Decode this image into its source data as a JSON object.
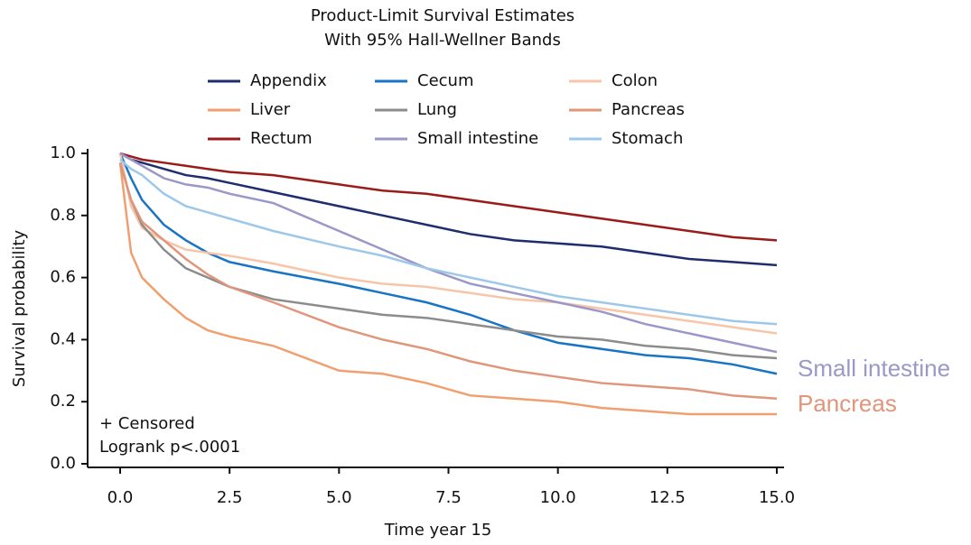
{
  "chart_data": {
    "type": "line",
    "title": "Product-Limit Survival Estimates",
    "subtitle": "With 95% Hall-Wellner Bands",
    "x_label": "Time year 15",
    "y_label": "Survival probability",
    "notes": [
      "+ Censored",
      "Logrank p<.0001"
    ],
    "annotations": [
      {
        "text": "Small intestine",
        "color": "#9b97c8"
      },
      {
        "text": "Pancreas",
        "color": "#e0967a"
      }
    ],
    "x": [
      0,
      0.25,
      0.5,
      1,
      1.5,
      2,
      2.5,
      3.5,
      5,
      6,
      7,
      8,
      9,
      10,
      11,
      12,
      13,
      14,
      15
    ],
    "xlim": [
      0,
      15
    ],
    "xticks": [
      {
        "value": 0,
        "label": "0.0"
      },
      {
        "value": 2.5,
        "label": "2.5"
      },
      {
        "value": 5,
        "label": "5.0"
      },
      {
        "value": 7.5,
        "label": "7.5"
      },
      {
        "value": 10,
        "label": "10.0"
      },
      {
        "value": 12.5,
        "label": "12.5"
      },
      {
        "value": 15,
        "label": "15.0"
      }
    ],
    "ylim": [
      0,
      1
    ],
    "yticks": [
      {
        "value": 0,
        "label": "0.0"
      },
      {
        "value": 0.2,
        "label": "0.2"
      },
      {
        "value": 0.4,
        "label": "0.4"
      },
      {
        "value": 0.6,
        "label": "0.6"
      },
      {
        "value": 0.8,
        "label": "0.8"
      },
      {
        "value": 1,
        "label": "1.0"
      }
    ],
    "series": [
      {
        "name": "Appendix",
        "color": "#1f2d6e",
        "values": [
          1.0,
          0.98,
          0.97,
          0.95,
          0.93,
          0.92,
          0.905,
          0.875,
          0.83,
          0.8,
          0.77,
          0.74,
          0.72,
          0.71,
          0.7,
          0.68,
          0.66,
          0.65,
          0.64
        ]
      },
      {
        "name": "Cecum",
        "color": "#1874c4",
        "values": [
          1.0,
          0.92,
          0.85,
          0.77,
          0.72,
          0.68,
          0.65,
          0.62,
          0.58,
          0.55,
          0.52,
          0.48,
          0.43,
          0.39,
          0.37,
          0.35,
          0.34,
          0.32,
          0.29
        ]
      },
      {
        "name": "Colon",
        "color": "#f7c6a8",
        "values": [
          1.0,
          0.83,
          0.76,
          0.72,
          0.69,
          0.68,
          0.67,
          0.645,
          0.6,
          0.58,
          0.57,
          0.55,
          0.53,
          0.52,
          0.5,
          0.48,
          0.46,
          0.44,
          0.42
        ]
      },
      {
        "name": "Liver",
        "color": "#f0a070",
        "values": [
          0.97,
          0.68,
          0.6,
          0.53,
          0.47,
          0.43,
          0.41,
          0.38,
          0.3,
          0.29,
          0.26,
          0.22,
          0.21,
          0.2,
          0.18,
          0.17,
          0.16,
          0.16,
          0.16
        ]
      },
      {
        "name": "Lung",
        "color": "#8c8c8c",
        "values": [
          0.97,
          0.85,
          0.77,
          0.69,
          0.63,
          0.6,
          0.57,
          0.53,
          0.5,
          0.48,
          0.47,
          0.45,
          0.43,
          0.41,
          0.4,
          0.38,
          0.37,
          0.35,
          0.34
        ]
      },
      {
        "name": "Pancreas",
        "color": "#e0967a",
        "values": [
          0.97,
          0.85,
          0.78,
          0.72,
          0.66,
          0.61,
          0.57,
          0.52,
          0.44,
          0.4,
          0.37,
          0.33,
          0.3,
          0.28,
          0.26,
          0.25,
          0.24,
          0.22,
          0.21
        ]
      },
      {
        "name": "Rectum",
        "color": "#9b1b1b",
        "values": [
          1.0,
          0.99,
          0.98,
          0.97,
          0.96,
          0.95,
          0.94,
          0.93,
          0.9,
          0.88,
          0.87,
          0.85,
          0.83,
          0.81,
          0.79,
          0.77,
          0.75,
          0.73,
          0.72
        ]
      },
      {
        "name": "Small intestine",
        "color": "#9b97c8",
        "values": [
          1.0,
          0.98,
          0.96,
          0.92,
          0.9,
          0.89,
          0.87,
          0.84,
          0.75,
          0.69,
          0.63,
          0.58,
          0.55,
          0.52,
          0.49,
          0.45,
          0.42,
          0.39,
          0.36
        ]
      },
      {
        "name": "Stomach",
        "color": "#9dc8ea",
        "values": [
          0.98,
          0.95,
          0.93,
          0.87,
          0.83,
          0.81,
          0.79,
          0.75,
          0.7,
          0.67,
          0.63,
          0.6,
          0.57,
          0.54,
          0.52,
          0.5,
          0.48,
          0.46,
          0.45
        ]
      }
    ]
  }
}
